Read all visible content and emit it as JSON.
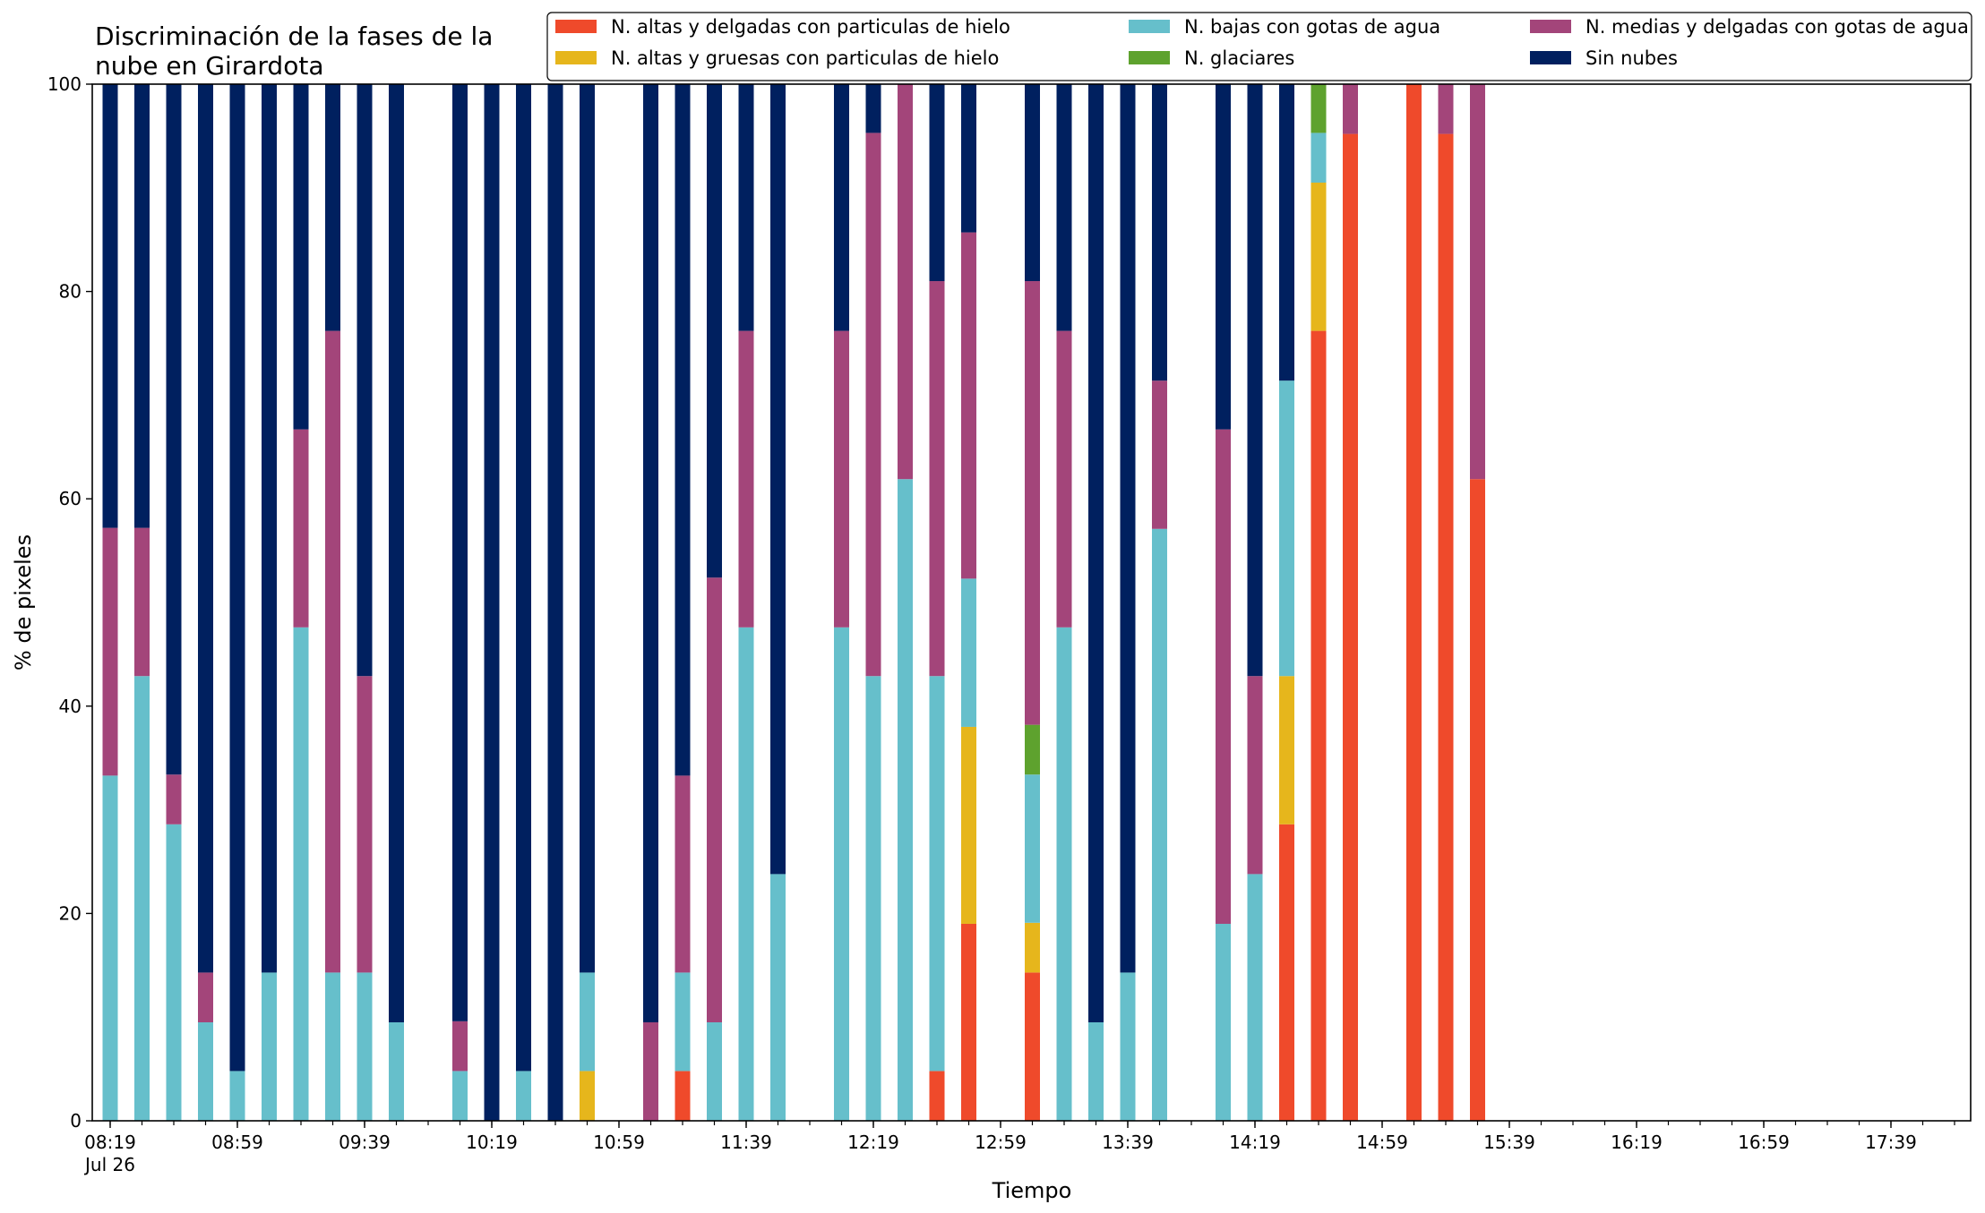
{
  "chart_data": {
    "type": "bar",
    "stacked": true,
    "title_lines": [
      "Discriminación de la fases de la",
      "nube en Girardota"
    ],
    "xlabel": "Tiempo",
    "ylabel": "% de pixeles",
    "ylim": [
      0,
      100
    ],
    "yticks": [
      0,
      20,
      40,
      60,
      80,
      100
    ],
    "x_start": "08:19",
    "x_end": "17:59",
    "x_interval_minutes": 10,
    "x_tick_labels": [
      {
        "time": "08:19",
        "label": "08:19",
        "sublabel": "Jul 26"
      },
      {
        "time": "08:59",
        "label": "08:59"
      },
      {
        "time": "09:39",
        "label": "09:39"
      },
      {
        "time": "10:19",
        "label": "10:19"
      },
      {
        "time": "10:59",
        "label": "10:59"
      },
      {
        "time": "11:39",
        "label": "11:39"
      },
      {
        "time": "12:19",
        "label": "12:19"
      },
      {
        "time": "12:59",
        "label": "12:59"
      },
      {
        "time": "13:39",
        "label": "13:39"
      },
      {
        "time": "14:19",
        "label": "14:19"
      },
      {
        "time": "14:59",
        "label": "14:59"
      },
      {
        "time": "15:39",
        "label": "15:39"
      },
      {
        "time": "16:19",
        "label": "16:19"
      },
      {
        "time": "16:59",
        "label": "16:59"
      },
      {
        "time": "17:39",
        "label": "17:39"
      }
    ],
    "legend_position": "top-right",
    "series": [
      {
        "key": "altas_delgadas",
        "name": "N. altas y delgadas con particulas de hielo",
        "color": "#ef4a2b"
      },
      {
        "key": "altas_gruesas",
        "name": "N. altas y gruesas con particulas de hielo",
        "color": "#e6b61c"
      },
      {
        "key": "bajas",
        "name": "N. bajas con gotas de agua",
        "color": "#66bfcb"
      },
      {
        "key": "glaciares",
        "name": "N. glaciares",
        "color": "#5ea22e"
      },
      {
        "key": "medias",
        "name": "N. medias y delgadas con gotas de agua",
        "color": "#a3457a"
      },
      {
        "key": "sin_nubes",
        "name": "Sin nubes",
        "color": "#00205f"
      }
    ],
    "bars": [
      {
        "time": "08:19",
        "altas_delgadas": 0,
        "altas_gruesas": 0,
        "bajas": 33.3,
        "glaciares": 0,
        "medias": 23.9,
        "sin_nubes": 42.8
      },
      {
        "time": "08:29",
        "altas_delgadas": 0,
        "altas_gruesas": 0,
        "bajas": 42.9,
        "glaciares": 0,
        "medias": 14.3,
        "sin_nubes": 42.8
      },
      {
        "time": "08:39",
        "altas_delgadas": 0,
        "altas_gruesas": 0,
        "bajas": 28.6,
        "glaciares": 0,
        "medias": 4.8,
        "sin_nubes": 66.6
      },
      {
        "time": "08:49",
        "altas_delgadas": 0,
        "altas_gruesas": 0,
        "bajas": 9.5,
        "glaciares": 0,
        "medias": 4.8,
        "sin_nubes": 85.7
      },
      {
        "time": "08:59",
        "altas_delgadas": 0,
        "altas_gruesas": 0,
        "bajas": 4.8,
        "glaciares": 0,
        "medias": 0,
        "sin_nubes": 95.2
      },
      {
        "time": "09:09",
        "altas_delgadas": 0,
        "altas_gruesas": 0,
        "bajas": 14.3,
        "glaciares": 0,
        "medias": 0,
        "sin_nubes": 85.7
      },
      {
        "time": "09:19",
        "altas_delgadas": 0,
        "altas_gruesas": 0,
        "bajas": 47.6,
        "glaciares": 0,
        "medias": 19.1,
        "sin_nubes": 33.3
      },
      {
        "time": "09:29",
        "altas_delgadas": 0,
        "altas_gruesas": 0,
        "bajas": 14.3,
        "glaciares": 0,
        "medias": 61.9,
        "sin_nubes": 23.8
      },
      {
        "time": "09:39",
        "altas_delgadas": 0,
        "altas_gruesas": 0,
        "bajas": 14.3,
        "glaciares": 0,
        "medias": 28.6,
        "sin_nubes": 57.1
      },
      {
        "time": "09:49",
        "altas_delgadas": 0,
        "altas_gruesas": 0,
        "bajas": 9.5,
        "glaciares": 0,
        "medias": 0,
        "sin_nubes": 90.5
      },
      {
        "time": "10:09",
        "altas_delgadas": 0,
        "altas_gruesas": 0,
        "bajas": 4.8,
        "glaciares": 0,
        "medias": 4.8,
        "sin_nubes": 90.4
      },
      {
        "time": "10:19",
        "altas_delgadas": 0,
        "altas_gruesas": 0,
        "bajas": 0,
        "glaciares": 0,
        "medias": 0,
        "sin_nubes": 100
      },
      {
        "time": "10:29",
        "altas_delgadas": 0,
        "altas_gruesas": 0,
        "bajas": 4.8,
        "glaciares": 0,
        "medias": 0,
        "sin_nubes": 95.2
      },
      {
        "time": "10:39",
        "altas_delgadas": 0,
        "altas_gruesas": 0,
        "bajas": 0,
        "glaciares": 0,
        "medias": 0,
        "sin_nubes": 100
      },
      {
        "time": "10:49",
        "altas_delgadas": 0,
        "altas_gruesas": 4.8,
        "bajas": 9.5,
        "glaciares": 0,
        "medias": 0,
        "sin_nubes": 85.7
      },
      {
        "time": "11:09",
        "altas_delgadas": 0,
        "altas_gruesas": 0,
        "bajas": 0,
        "glaciares": 0,
        "medias": 9.5,
        "sin_nubes": 90.5
      },
      {
        "time": "11:19",
        "altas_delgadas": 4.8,
        "altas_gruesas": 0,
        "bajas": 9.5,
        "glaciares": 0,
        "medias": 19.0,
        "sin_nubes": 66.7
      },
      {
        "time": "11:29",
        "altas_delgadas": 0,
        "altas_gruesas": 0,
        "bajas": 9.5,
        "glaciares": 0,
        "medias": 42.9,
        "sin_nubes": 47.6
      },
      {
        "time": "11:39",
        "altas_delgadas": 0,
        "altas_gruesas": 0,
        "bajas": 47.6,
        "glaciares": 0,
        "medias": 28.6,
        "sin_nubes": 23.8
      },
      {
        "time": "11:49",
        "altas_delgadas": 0,
        "altas_gruesas": 0,
        "bajas": 23.8,
        "glaciares": 0,
        "medias": 0,
        "sin_nubes": 76.2
      },
      {
        "time": "12:09",
        "altas_delgadas": 0,
        "altas_gruesas": 0,
        "bajas": 47.6,
        "glaciares": 0,
        "medias": 28.6,
        "sin_nubes": 23.8
      },
      {
        "time": "12:19",
        "altas_delgadas": 0,
        "altas_gruesas": 0,
        "bajas": 42.9,
        "glaciares": 0,
        "medias": 52.4,
        "sin_nubes": 4.7
      },
      {
        "time": "12:29",
        "altas_delgadas": 0,
        "altas_gruesas": 0,
        "bajas": 61.9,
        "glaciares": 0,
        "medias": 38.1,
        "sin_nubes": 0
      },
      {
        "time": "12:39",
        "altas_delgadas": 4.8,
        "altas_gruesas": 0,
        "bajas": 38.1,
        "glaciares": 0,
        "medias": 38.1,
        "sin_nubes": 19.0
      },
      {
        "time": "12:49",
        "altas_delgadas": 19.0,
        "altas_gruesas": 19.0,
        "bajas": 14.3,
        "glaciares": 0,
        "medias": 33.4,
        "sin_nubes": 14.3
      },
      {
        "time": "13:09",
        "altas_delgadas": 14.3,
        "altas_gruesas": 4.8,
        "bajas": 14.3,
        "glaciares": 4.8,
        "medias": 42.8,
        "sin_nubes": 19.0
      },
      {
        "time": "13:19",
        "altas_delgadas": 0,
        "altas_gruesas": 0,
        "bajas": 47.6,
        "glaciares": 0,
        "medias": 28.6,
        "sin_nubes": 23.8
      },
      {
        "time": "13:29",
        "altas_delgadas": 0,
        "altas_gruesas": 0,
        "bajas": 9.5,
        "glaciares": 0,
        "medias": 0,
        "sin_nubes": 90.5
      },
      {
        "time": "13:39",
        "altas_delgadas": 0,
        "altas_gruesas": 0,
        "bajas": 14.3,
        "glaciares": 0,
        "medias": 0,
        "sin_nubes": 85.7
      },
      {
        "time": "13:49",
        "altas_delgadas": 0,
        "altas_gruesas": 0,
        "bajas": 57.1,
        "glaciares": 0,
        "medias": 14.3,
        "sin_nubes": 28.6
      },
      {
        "time": "14:09",
        "altas_delgadas": 0,
        "altas_gruesas": 0,
        "bajas": 19.0,
        "glaciares": 0,
        "medias": 47.7,
        "sin_nubes": 33.3
      },
      {
        "time": "14:19",
        "altas_delgadas": 0,
        "altas_gruesas": 0,
        "bajas": 23.8,
        "glaciares": 0,
        "medias": 19.1,
        "sin_nubes": 57.1
      },
      {
        "time": "14:29",
        "altas_delgadas": 28.6,
        "altas_gruesas": 14.3,
        "bajas": 28.5,
        "glaciares": 0,
        "medias": 0,
        "sin_nubes": 28.6
      },
      {
        "time": "14:39",
        "altas_delgadas": 76.2,
        "altas_gruesas": 14.3,
        "bajas": 4.8,
        "glaciares": 4.7,
        "medias": 0,
        "sin_nubes": 0
      },
      {
        "time": "14:49",
        "altas_delgadas": 95.2,
        "altas_gruesas": 0,
        "bajas": 0,
        "glaciares": 0,
        "medias": 4.8,
        "sin_nubes": 0
      },
      {
        "time": "15:09",
        "altas_delgadas": 100,
        "altas_gruesas": 0,
        "bajas": 0,
        "glaciares": 0,
        "medias": 0,
        "sin_nubes": 0
      },
      {
        "time": "15:19",
        "altas_delgadas": 95.2,
        "altas_gruesas": 0,
        "bajas": 0,
        "glaciares": 0,
        "medias": 4.8,
        "sin_nubes": 0
      },
      {
        "time": "15:29",
        "altas_delgadas": 61.9,
        "altas_gruesas": 0,
        "bajas": 0,
        "glaciares": 0,
        "medias": 38.1,
        "sin_nubes": 0
      }
    ]
  }
}
